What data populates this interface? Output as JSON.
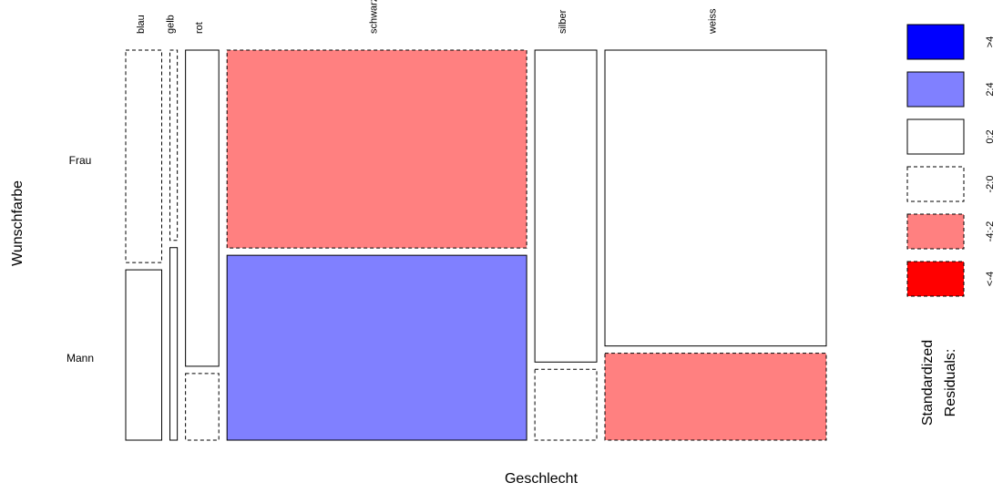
{
  "chart_data": {
    "type": "mosaic",
    "xlabel": "Geschlecht",
    "ylabel": "Wunschfarbe",
    "row_labels": [
      "Frau",
      "Mann"
    ],
    "columns": [
      {
        "label": "blau",
        "width_share": 0.0546,
        "frau_share": 0.555,
        "frau_band": "-2:0",
        "mann_band": "0:2"
      },
      {
        "label": "gelb",
        "width_share": 0.0112,
        "frau_share": 0.497,
        "frau_band": "-2:0",
        "mann_band": "0:2"
      },
      {
        "label": "rot",
        "width_share": 0.0505,
        "frau_share": 0.826,
        "frau_band": "0:2",
        "mann_band": "-2:0"
      },
      {
        "label": "schwarz",
        "width_share": 0.4543,
        "frau_share": 0.517,
        "frau_band": "-4:-2",
        "mann_band": "2:4"
      },
      {
        "label": "silber",
        "width_share": 0.0938,
        "frau_share": 0.815,
        "frau_band": "0:2",
        "mann_band": "-2:0"
      },
      {
        "label": "weiss",
        "width_share": 0.3356,
        "frau_share": 0.773,
        "frau_band": "0:2",
        "mann_band": "-4:-2"
      }
    ],
    "legend": {
      "title_lines": [
        "Standardized",
        "Residuals:"
      ],
      "placement": "right",
      "bands": [
        {
          "label": ">4",
          "color": "#0000ff",
          "dashed": false
        },
        {
          "label": "2:4",
          "color": "#8080ff",
          "dashed": false
        },
        {
          "label": "0:2",
          "color": "#ffffff",
          "dashed": false
        },
        {
          "label": "-2:0",
          "color": "#ffffff",
          "dashed": true
        },
        {
          "label": "-4:-2",
          "color": "#ff8080",
          "dashed": true
        },
        {
          "label": "<-4",
          "color": "#ff0000",
          "dashed": true
        }
      ]
    }
  }
}
